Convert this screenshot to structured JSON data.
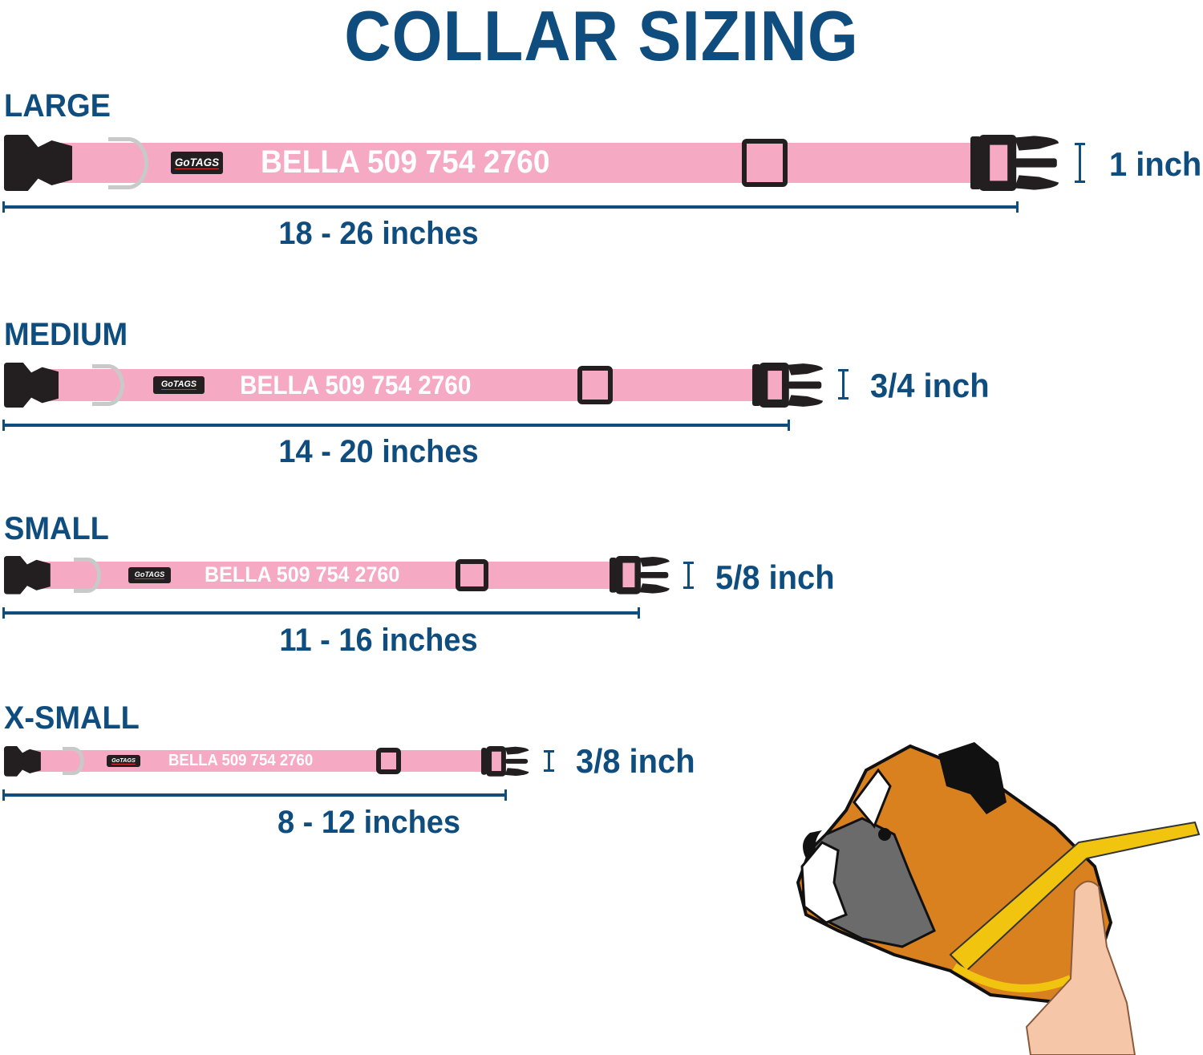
{
  "title": "COLLAR SIZING",
  "colors": {
    "title": "#0e4d7e",
    "strap": "#f5a9c2",
    "hardware": "#231f20",
    "ring": "#c9c9c9"
  },
  "collars": [
    {
      "size": "LARGE",
      "logo": "GoTAGS",
      "engraving": "BELLA 509 754 2760",
      "range": "18 - 26 inches",
      "width": "1 inch"
    },
    {
      "size": "MEDIUM",
      "logo": "GoTAGS",
      "engraving": "BELLA 509 754 2760",
      "range": "14 - 20 inches",
      "width": "3/4 inch"
    },
    {
      "size": "SMALL",
      "logo": "GoTAGS",
      "engraving": "BELLA 509 754 2760",
      "range": "11 - 16 inches",
      "width": "5/8 inch"
    },
    {
      "size": "X-SMALL",
      "logo": "GoTAGS",
      "engraving": "BELLA 509 754 2760",
      "range": "8 - 12 inches",
      "width": "3/8 inch"
    }
  ],
  "illustration": {
    "icon": "boxer-dog-measuring-tape-icon"
  }
}
